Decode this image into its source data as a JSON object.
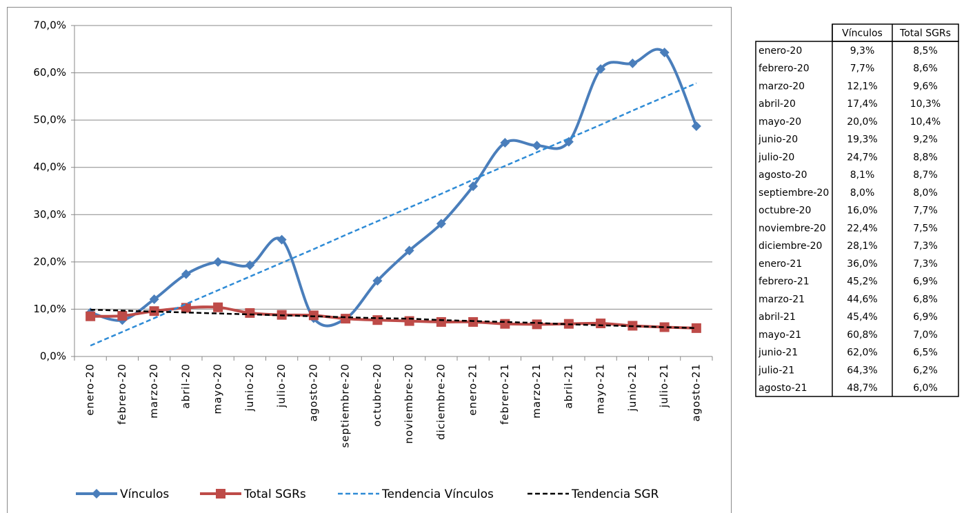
{
  "chart_data": {
    "type": "line",
    "categories": [
      "enero-20",
      "febrero-20",
      "marzo-20",
      "abril-20",
      "mayo-20",
      "junio-20",
      "julio-20",
      "agosto-20",
      "septiembre-20",
      "octubre-20",
      "noviembre-20",
      "diciembre-20",
      "enero-21",
      "febrero-21",
      "marzo-21",
      "abril-21",
      "mayo-21",
      "junio-21",
      "julio-21",
      "agosto-21"
    ],
    "series": [
      {
        "name": "Vínculos",
        "color": "#4a7ebb",
        "marker": "diamond",
        "smooth": true,
        "values": [
          9.3,
          7.7,
          12.1,
          17.4,
          20.0,
          19.3,
          24.7,
          8.1,
          8.0,
          16.0,
          22.4,
          28.1,
          36.0,
          45.2,
          44.6,
          45.4,
          60.8,
          62.0,
          64.3,
          48.7
        ],
        "value_labels": [
          "9,3%",
          "7,7%",
          "12,1%",
          "17,4%",
          "20,0%",
          "19,3%",
          "24,7%",
          "8,1%",
          "8,0%",
          "16,0%",
          "22,4%",
          "28,1%",
          "36,0%",
          "45,2%",
          "44,6%",
          "45,4%",
          "60,8%",
          "62,0%",
          "64,3%",
          "48,7%"
        ]
      },
      {
        "name": "Total SGRs",
        "color": "#be4b48",
        "marker": "square",
        "smooth": true,
        "values": [
          8.5,
          8.6,
          9.6,
          10.3,
          10.4,
          9.2,
          8.8,
          8.7,
          8.0,
          7.7,
          7.5,
          7.3,
          7.3,
          6.9,
          6.8,
          6.9,
          7.0,
          6.5,
          6.2,
          6.0
        ],
        "value_labels": [
          "8,5%",
          "8,6%",
          "9,6%",
          "10,3%",
          "10,4%",
          "9,2%",
          "8,8%",
          "8,7%",
          "8,0%",
          "7,7%",
          "7,5%",
          "7,3%",
          "7,3%",
          "6,9%",
          "6,8%",
          "6,9%",
          "7,0%",
          "6,5%",
          "6,2%",
          "6,0%"
        ]
      },
      {
        "name": "Tendencia Vínculos",
        "color": "#2e8bd6",
        "dash": true,
        "values": [
          2.3,
          5.2,
          8.1,
          11.1,
          14.0,
          16.9,
          19.8,
          22.7,
          25.7,
          28.6,
          31.5,
          34.4,
          37.4,
          40.3,
          43.2,
          46.1,
          49.0,
          52.0,
          54.9,
          57.8
        ]
      },
      {
        "name": "Tendencia SGR",
        "color": "#000000",
        "dash": true,
        "values": [
          9.9,
          9.7,
          9.5,
          9.3,
          9.1,
          8.9,
          8.7,
          8.5,
          8.3,
          8.1,
          8.0,
          7.7,
          7.5,
          7.3,
          7.1,
          6.8,
          6.6,
          6.4,
          6.2,
          6.0
        ]
      }
    ],
    "ylim": [
      0,
      70
    ],
    "yticks": [
      {
        "value": 0,
        "label": "0,0%"
      },
      {
        "value": 10,
        "label": "10,0%"
      },
      {
        "value": 20,
        "label": "20,0%"
      },
      {
        "value": 30,
        "label": "30,0%"
      },
      {
        "value": 40,
        "label": "40,0%"
      },
      {
        "value": 50,
        "label": "50,0%"
      },
      {
        "value": 60,
        "label": "60,0%"
      },
      {
        "value": 70,
        "label": "70,0%"
      }
    ],
    "grid": true,
    "legend": "bottom"
  }
}
